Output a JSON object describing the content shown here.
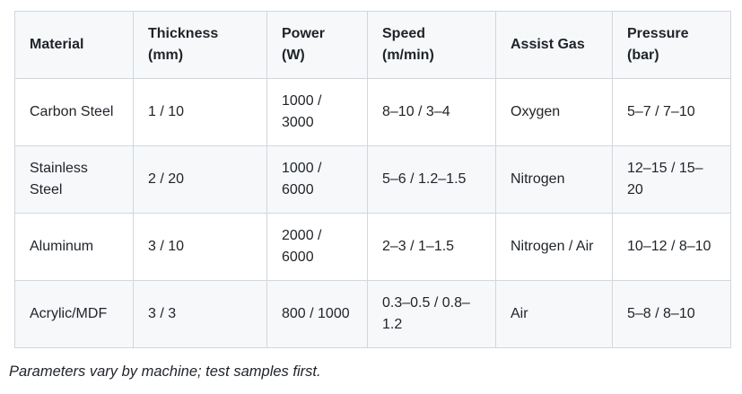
{
  "table": {
    "columns": [
      {
        "name": "Material",
        "unit": ""
      },
      {
        "name": "Thickness",
        "unit": "(mm)"
      },
      {
        "name": "Power",
        "unit": "(W)"
      },
      {
        "name": "Speed",
        "unit": "(m/min)"
      },
      {
        "name": "Assist Gas",
        "unit": ""
      },
      {
        "name": "Pressure",
        "unit": "(bar)"
      }
    ],
    "rows": [
      [
        "Carbon Steel",
        "1 / 10",
        "1000 / 3000",
        "8–10 / 3–4",
        "Oxygen",
        "5–7 / 7–10"
      ],
      [
        "Stainless Steel",
        "2 / 20",
        "1000 / 6000",
        "5–6 / 1.2–1.5",
        "Nitrogen",
        "12–15 / 15–20"
      ],
      [
        "Aluminum",
        "3 / 10",
        "2000 / 6000",
        "2–3 / 1–1.5",
        "Nitrogen / Air",
        "10–12 / 8–10"
      ],
      [
        "Acrylic/MDF",
        "3 / 3",
        "800 / 1000",
        "0.3–0.5 / 0.8–1.2",
        "Air",
        "5–8 / 8–10"
      ]
    ]
  },
  "footer": {
    "note": "Parameters vary by machine; test samples first."
  },
  "colors": {
    "header_bg": "#f6f8fa",
    "stripe_bg": "#f6f8fa",
    "border": "#d0d7de",
    "text": "#1f2328"
  }
}
